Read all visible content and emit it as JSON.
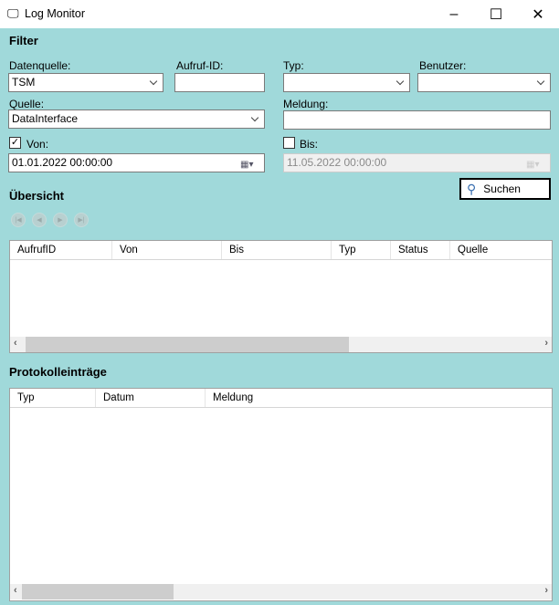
{
  "window": {
    "title": "Log Monitor",
    "minimize": "–",
    "maximize": "☐",
    "close": "✕"
  },
  "filter": {
    "heading": "Filter",
    "datenquelle": {
      "label": "Datenquelle:",
      "value": "TSM"
    },
    "aufruf_id": {
      "label": "Aufruf-ID:",
      "value": ""
    },
    "typ": {
      "label": "Typ:",
      "value": ""
    },
    "benutzer": {
      "label": "Benutzer:",
      "value": ""
    },
    "quelle": {
      "label": "Quelle:",
      "value": "DataInterface"
    },
    "meldung": {
      "label": "Meldung:",
      "value": ""
    },
    "von": {
      "label": "Von:",
      "checked": true,
      "value": "01.01.2022 00:00:00"
    },
    "bis": {
      "label": "Bis:",
      "checked": false,
      "value": "11.05.2022 00:00:00"
    },
    "search_label": "Suchen"
  },
  "overview": {
    "heading": "Übersicht",
    "columns": [
      "AufrufID",
      "Von",
      "Bis",
      "Typ",
      "Status",
      "Quelle"
    ],
    "rows": []
  },
  "log": {
    "heading": "Protokolleinträge",
    "columns": [
      "Typ",
      "Datum",
      "Meldung"
    ],
    "rows": []
  },
  "colors": {
    "background": "#a0d9da"
  }
}
